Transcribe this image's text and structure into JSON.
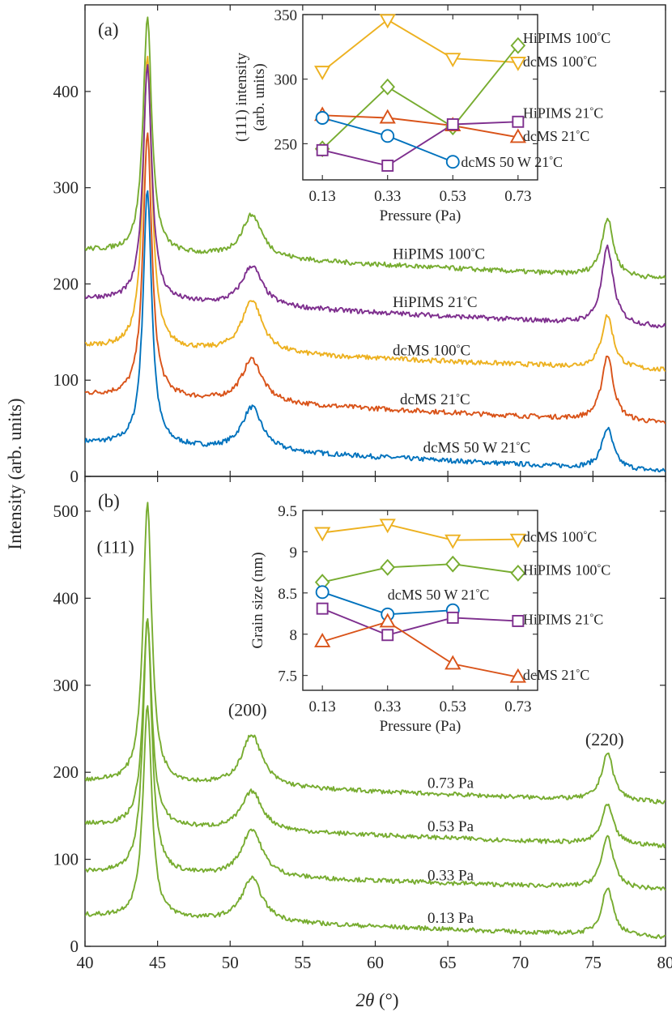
{
  "figure": {
    "shared_ylabel": "Intensity (arb. units)",
    "shared_xlabel_symbol": "2θ",
    "shared_xlabel_unit": " (°)"
  },
  "colors": {
    "blue": "#0072BD",
    "orange": "#D95319",
    "yellow": "#EDB120",
    "purple": "#7E2F8E",
    "green": "#77AC30",
    "axis": "#262626"
  },
  "chart_data": [
    {
      "panel": "a",
      "label": "(a)",
      "type": "line",
      "xlabel": "2θ (°)",
      "ylabel": "Intensity (arb. units)",
      "xlim": [
        40,
        80
      ],
      "ylim": [
        0,
        490
      ],
      "xticks": [
        40,
        45,
        50,
        55,
        60,
        65,
        70,
        75,
        80
      ],
      "xtick_labels": [
        "40",
        "45",
        "50",
        "55",
        "60",
        "65",
        "70",
        "75",
        "80"
      ],
      "yticks": [
        0,
        100,
        200,
        300,
        400
      ],
      "ytick_labels": [
        "0",
        "100",
        "200",
        "300",
        "400"
      ],
      "series": [
        {
          "name": "dcMS 50 W 21°C",
          "label": "dcMS 50 W 21",
          "color_key": "blue",
          "base": 35,
          "peaks": [
            [
              44.3,
              265
            ],
            [
              51.5,
              45
            ],
            [
              76.0,
              42
            ]
          ],
          "tail": -30,
          "label_x": 63.3,
          "label_y": 25
        },
        {
          "name": "dcMS 21°C",
          "label": "dcMS 21",
          "color_key": "orange",
          "base": 85,
          "peaks": [
            [
              44.3,
              275
            ],
            [
              51.5,
              45
            ],
            [
              76.0,
              68
            ]
          ],
          "tail": -30,
          "label_x": 61.7,
          "label_y": 75
        },
        {
          "name": "dcMS 100°C",
          "label": "dcMS 100",
          "color_key": "yellow",
          "base": 135,
          "peaks": [
            [
              44.3,
              305
            ],
            [
              51.5,
              55
            ],
            [
              76.0,
              55
            ]
          ],
          "tail": -25,
          "label_x": 61.2,
          "label_y": 126
        },
        {
          "name": "HiPIMS 21°C",
          "label": "HiPIMS 21",
          "color_key": "purple",
          "base": 185,
          "peaks": [
            [
              44.3,
              245
            ],
            [
              51.5,
              42
            ],
            [
              76.0,
              80
            ]
          ],
          "tail": -30,
          "label_x": 61.2,
          "label_y": 176
        },
        {
          "name": "HiPIMS 100°C",
          "label": "HiPIMS 100",
          "color_key": "green",
          "base": 235,
          "peaks": [
            [
              44.3,
              245
            ],
            [
              51.5,
              45
            ],
            [
              76.0,
              60
            ]
          ],
          "tail": -30,
          "label_x": 61.2,
          "label_y": 226
        }
      ],
      "inset": {
        "type": "line",
        "xlabel": "Pressure (Pa)",
        "ylabel_line1": "(111) intensity",
        "ylabel_line2": "(arb. units)",
        "x": [
          0.13,
          0.33,
          0.53,
          0.73
        ],
        "xtick_labels": [
          "0.13",
          "0.33",
          "0.53",
          "0.73"
        ],
        "xlim": [
          0.07,
          0.79
        ],
        "ylim": [
          222,
          350
        ],
        "yticks": [
          250,
          300,
          350
        ],
        "ytick_labels": [
          "250",
          "300",
          "350"
        ],
        "series": [
          {
            "name": "dcMS 100°C",
            "label": "dcMS 100",
            "color_key": "yellow",
            "marker": "triangle-down",
            "values": [
              306,
              346,
              316,
              313
            ],
            "label_x": 0.745,
            "label_y": 310
          },
          {
            "name": "HiPIMS 100°C",
            "label": "HiPIMS 100",
            "color_key": "green",
            "marker": "diamond",
            "values": [
              246,
              294,
              263,
              326
            ],
            "label_x": 0.745,
            "label_y": 328
          },
          {
            "name": "dcMS 21°C",
            "label": "dcMS 21",
            "color_key": "orange",
            "marker": "triangle-up",
            "values": [
              272,
              270,
              264,
              255
            ],
            "label_x": 0.745,
            "label_y": 252
          },
          {
            "name": "HiPIMS 21°C",
            "label": "HiPIMS 21",
            "color_key": "purple",
            "marker": "square",
            "values": [
              245,
              233,
              265,
              267
            ],
            "label_x": 0.745,
            "label_y": 270
          },
          {
            "name": "dcMS 50 W 21°C",
            "label": "dcMS 50 W 21",
            "color_key": "blue",
            "marker": "circle",
            "values": [
              270,
              256,
              236
            ],
            "label_x": 0.555,
            "label_y": 232
          }
        ]
      }
    },
    {
      "panel": "b",
      "label": "(b)",
      "type": "line",
      "xlabel": "2θ (°)",
      "ylabel": "Intensity (arb. units)",
      "xlim": [
        40,
        80
      ],
      "ylim": [
        0,
        540
      ],
      "xticks": [
        40,
        45,
        50,
        55,
        60,
        65,
        70,
        75,
        80
      ],
      "xtick_labels": [
        "40",
        "45",
        "50",
        "55",
        "60",
        "65",
        "70",
        "75",
        "80"
      ],
      "yticks": [
        0,
        100,
        200,
        300,
        400,
        500
      ],
      "ytick_labels": [
        "0",
        "100",
        "200",
        "300",
        "400",
        "500"
      ],
      "peak_labels": [
        {
          "text": "(111)",
          "x": 42.1,
          "y": 452
        },
        {
          "text": "(200)",
          "x": 51.2,
          "y": 265
        },
        {
          "text": "(220)",
          "x": 75.8,
          "y": 231
        }
      ],
      "series": [
        {
          "name": "0.13 Pa",
          "label": "0.13 Pa",
          "color_key": "green",
          "base": 35,
          "peaks": [
            [
              44.3,
              245
            ],
            [
              51.5,
              50
            ],
            [
              76.0,
              55
            ]
          ],
          "tail": -25,
          "label_x": 63.6,
          "label_y": 27
        },
        {
          "name": "0.33 Pa",
          "label": "0.33 Pa",
          "color_key": "green",
          "base": 85,
          "peaks": [
            [
              44.3,
              295
            ],
            [
              51.5,
              55
            ],
            [
              76.0,
              60
            ]
          ],
          "tail": -20,
          "label_x": 63.6,
          "label_y": 76
        },
        {
          "name": "0.53 Pa",
          "label": "0.53 Pa",
          "color_key": "green",
          "base": 140,
          "peaks": [
            [
              44.3,
              240
            ],
            [
              51.5,
              45
            ],
            [
              76.0,
              45
            ]
          ],
          "tail": -25,
          "label_x": 63.6,
          "label_y": 132
        },
        {
          "name": "0.73 Pa",
          "label": "0.73 Pa",
          "color_key": "green",
          "base": 190,
          "peaks": [
            [
              44.3,
              322
            ],
            [
              51.5,
              60
            ],
            [
              76.0,
              55
            ]
          ],
          "tail": -25,
          "label_x": 63.6,
          "label_y": 182
        }
      ],
      "inset": {
        "type": "line",
        "xlabel": "Pressure (Pa)",
        "ylabel_line1": "Grain size (nm)",
        "ylabel_line2": "",
        "x": [
          0.13,
          0.33,
          0.53,
          0.73
        ],
        "xtick_labels": [
          "0.13",
          "0.33",
          "0.53",
          "0.73"
        ],
        "xlim": [
          0.07,
          0.79
        ],
        "ylim": [
          7.32,
          9.5
        ],
        "yticks": [
          7.5,
          8,
          8.5,
          9,
          9.5
        ],
        "ytick_labels": [
          "7.5",
          "8",
          "8.5",
          "9",
          "9.5"
        ],
        "series": [
          {
            "name": "dcMS 100°C",
            "label": "dcMS 100",
            "color_key": "yellow",
            "marker": "triangle-down",
            "values": [
              9.23,
              9.33,
              9.14,
              9.15
            ],
            "label_x": 0.745,
            "label_y": 9.12
          },
          {
            "name": "HiPIMS 100°C",
            "label": "HiPIMS 100",
            "color_key": "green",
            "marker": "diamond",
            "values": [
              8.63,
              8.81,
              8.85,
              8.74
            ],
            "label_x": 0.745,
            "label_y": 8.72
          },
          {
            "name": "dcMS 50 W 21°C",
            "label": "dcMS 50 W 21",
            "color_key": "blue",
            "marker": "circle",
            "values": [
              8.51,
              8.24,
              8.29
            ],
            "label_x": 0.33,
            "label_y": 8.42
          },
          {
            "name": "HiPIMS 21°C",
            "label": "HiPIMS 21",
            "color_key": "purple",
            "marker": "square",
            "values": [
              8.31,
              7.99,
              8.2,
              8.16
            ],
            "label_x": 0.745,
            "label_y": 8.12
          },
          {
            "name": "dcMS 21°C",
            "label": "dcMS 21",
            "color_key": "orange",
            "marker": "triangle-up",
            "values": [
              7.91,
              8.15,
              7.64,
              7.48
            ],
            "label_x": 0.745,
            "label_y": 7.45
          }
        ]
      }
    }
  ]
}
